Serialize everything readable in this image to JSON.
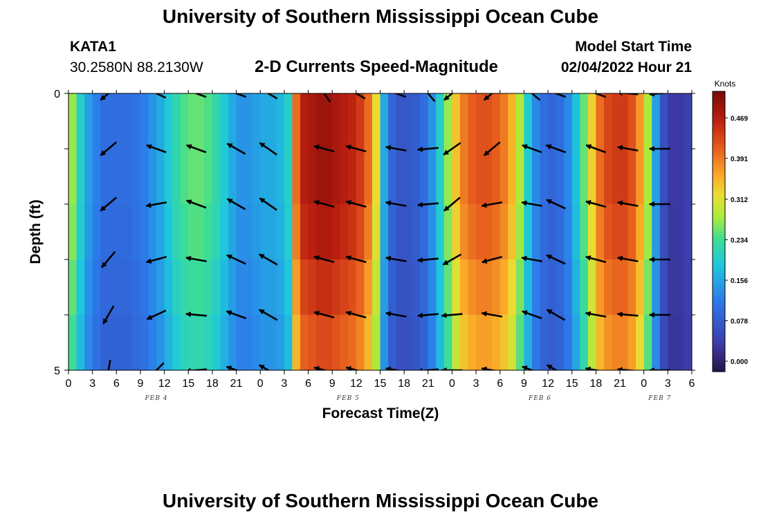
{
  "page": {
    "title_top": "University of Southern Mississippi Ocean Cube",
    "title_bottom": "University of Southern Mississippi Ocean Cube"
  },
  "station": {
    "id": "KATA1",
    "coords": "30.2580N  88.2130W"
  },
  "model": {
    "label": "Model Start Time",
    "start": "02/04/2022 Hour 21"
  },
  "chart_data": {
    "type": "heatmap",
    "title": "2-D Currents Speed-Magnitude",
    "xlabel": "Forecast Time(Z)",
    "ylabel": "Depth (ft)",
    "ylim": [
      0,
      5
    ],
    "y_tick_labels": [
      "0",
      "5"
    ],
    "y_tick_values": [
      0,
      1,
      2,
      3,
      4,
      5
    ],
    "x_tick_labels": [
      "0",
      "3",
      "6",
      "9",
      "12",
      "15",
      "18",
      "21",
      "0",
      "3",
      "6",
      "9",
      "12",
      "15",
      "18",
      "21",
      "0",
      "3",
      "6",
      "9",
      "12",
      "15",
      "18",
      "21",
      "0",
      "3",
      "6"
    ],
    "date_labels": [
      {
        "label": "FEB 4",
        "hour_index": 11
      },
      {
        "label": "FEB 5",
        "hour_index": 35
      },
      {
        "label": "FEB 6",
        "hour_index": 59
      },
      {
        "label": "FEB 7",
        "hour_index": 74
      }
    ],
    "x_hours_total": 78,
    "colorbar": {
      "unit": "Knots",
      "min": -0.02,
      "max": 0.52,
      "tick_labels": [
        "0.469",
        "0.391",
        "0.312",
        "0.234",
        "0.156",
        "0.078",
        "0.000"
      ],
      "tick_values": [
        0.469,
        0.391,
        0.312,
        0.234,
        0.156,
        0.078,
        0.0
      ]
    },
    "speed_profile": {
      "hours": [
        0,
        1,
        2,
        3,
        4,
        5,
        6,
        7,
        8,
        9,
        10,
        11,
        12,
        13,
        14,
        15,
        16,
        17,
        18,
        19,
        20,
        21,
        22,
        23,
        24,
        25,
        26,
        27,
        28,
        29,
        30,
        31,
        32,
        33,
        34,
        35,
        36,
        37,
        38,
        39,
        40,
        41,
        42,
        43,
        44,
        45,
        46,
        47,
        48,
        49,
        50,
        51,
        52,
        53,
        54,
        55,
        56,
        57,
        58,
        59,
        60,
        61,
        62,
        63,
        64,
        65,
        66,
        67,
        68,
        69,
        70,
        71,
        72,
        73,
        74,
        75,
        76,
        77,
        78
      ],
      "values": [
        0.27,
        0.2,
        0.15,
        0.12,
        0.1,
        0.1,
        0.1,
        0.1,
        0.11,
        0.12,
        0.14,
        0.16,
        0.19,
        0.22,
        0.24,
        0.25,
        0.25,
        0.24,
        0.22,
        0.19,
        0.16,
        0.14,
        0.14,
        0.15,
        0.16,
        0.16,
        0.17,
        0.2,
        0.4,
        0.47,
        0.48,
        0.49,
        0.49,
        0.48,
        0.47,
        0.46,
        0.44,
        0.4,
        0.32,
        0.16,
        0.09,
        0.07,
        0.07,
        0.08,
        0.1,
        0.14,
        0.2,
        0.27,
        0.34,
        0.39,
        0.41,
        0.42,
        0.42,
        0.41,
        0.39,
        0.35,
        0.28,
        0.19,
        0.13,
        0.1,
        0.09,
        0.1,
        0.13,
        0.18,
        0.25,
        0.33,
        0.4,
        0.43,
        0.44,
        0.44,
        0.42,
        0.37,
        0.28,
        0.15,
        0.06,
        0.03,
        0.03,
        0.04,
        0.05
      ]
    },
    "depth_factors": [
      1.0,
      1.0,
      0.97,
      0.92,
      0.87,
      0.82
    ],
    "vectors": {
      "hours": [
        5,
        11,
        16,
        21,
        25,
        32,
        36,
        41,
        45,
        48,
        53,
        58,
        61,
        66,
        70,
        74
      ],
      "depths": [
        0,
        1,
        2,
        3,
        4,
        5
      ],
      "directions_deg": [
        [
          140,
          205,
          200,
          200,
          210,
          235,
          210,
          200,
          230,
          140,
          140,
          220,
          200,
          200,
          185,
          175
        ],
        [
          140,
          200,
          200,
          210,
          215,
          195,
          195,
          190,
          175,
          145,
          140,
          200,
          200,
          200,
          190,
          180
        ],
        [
          140,
          170,
          200,
          210,
          215,
          195,
          195,
          190,
          175,
          140,
          170,
          190,
          205,
          195,
          190,
          180
        ],
        [
          130,
          165,
          190,
          205,
          210,
          195,
          195,
          190,
          175,
          150,
          165,
          190,
          205,
          195,
          190,
          180
        ],
        [
          120,
          155,
          185,
          200,
          210,
          195,
          195,
          190,
          175,
          175,
          190,
          200,
          210,
          190,
          185,
          180
        ],
        [
          100,
          135,
          175,
          200,
          210,
          195,
          195,
          190,
          175,
          180,
          190,
          200,
          210,
          190,
          185,
          180
        ]
      ]
    }
  }
}
